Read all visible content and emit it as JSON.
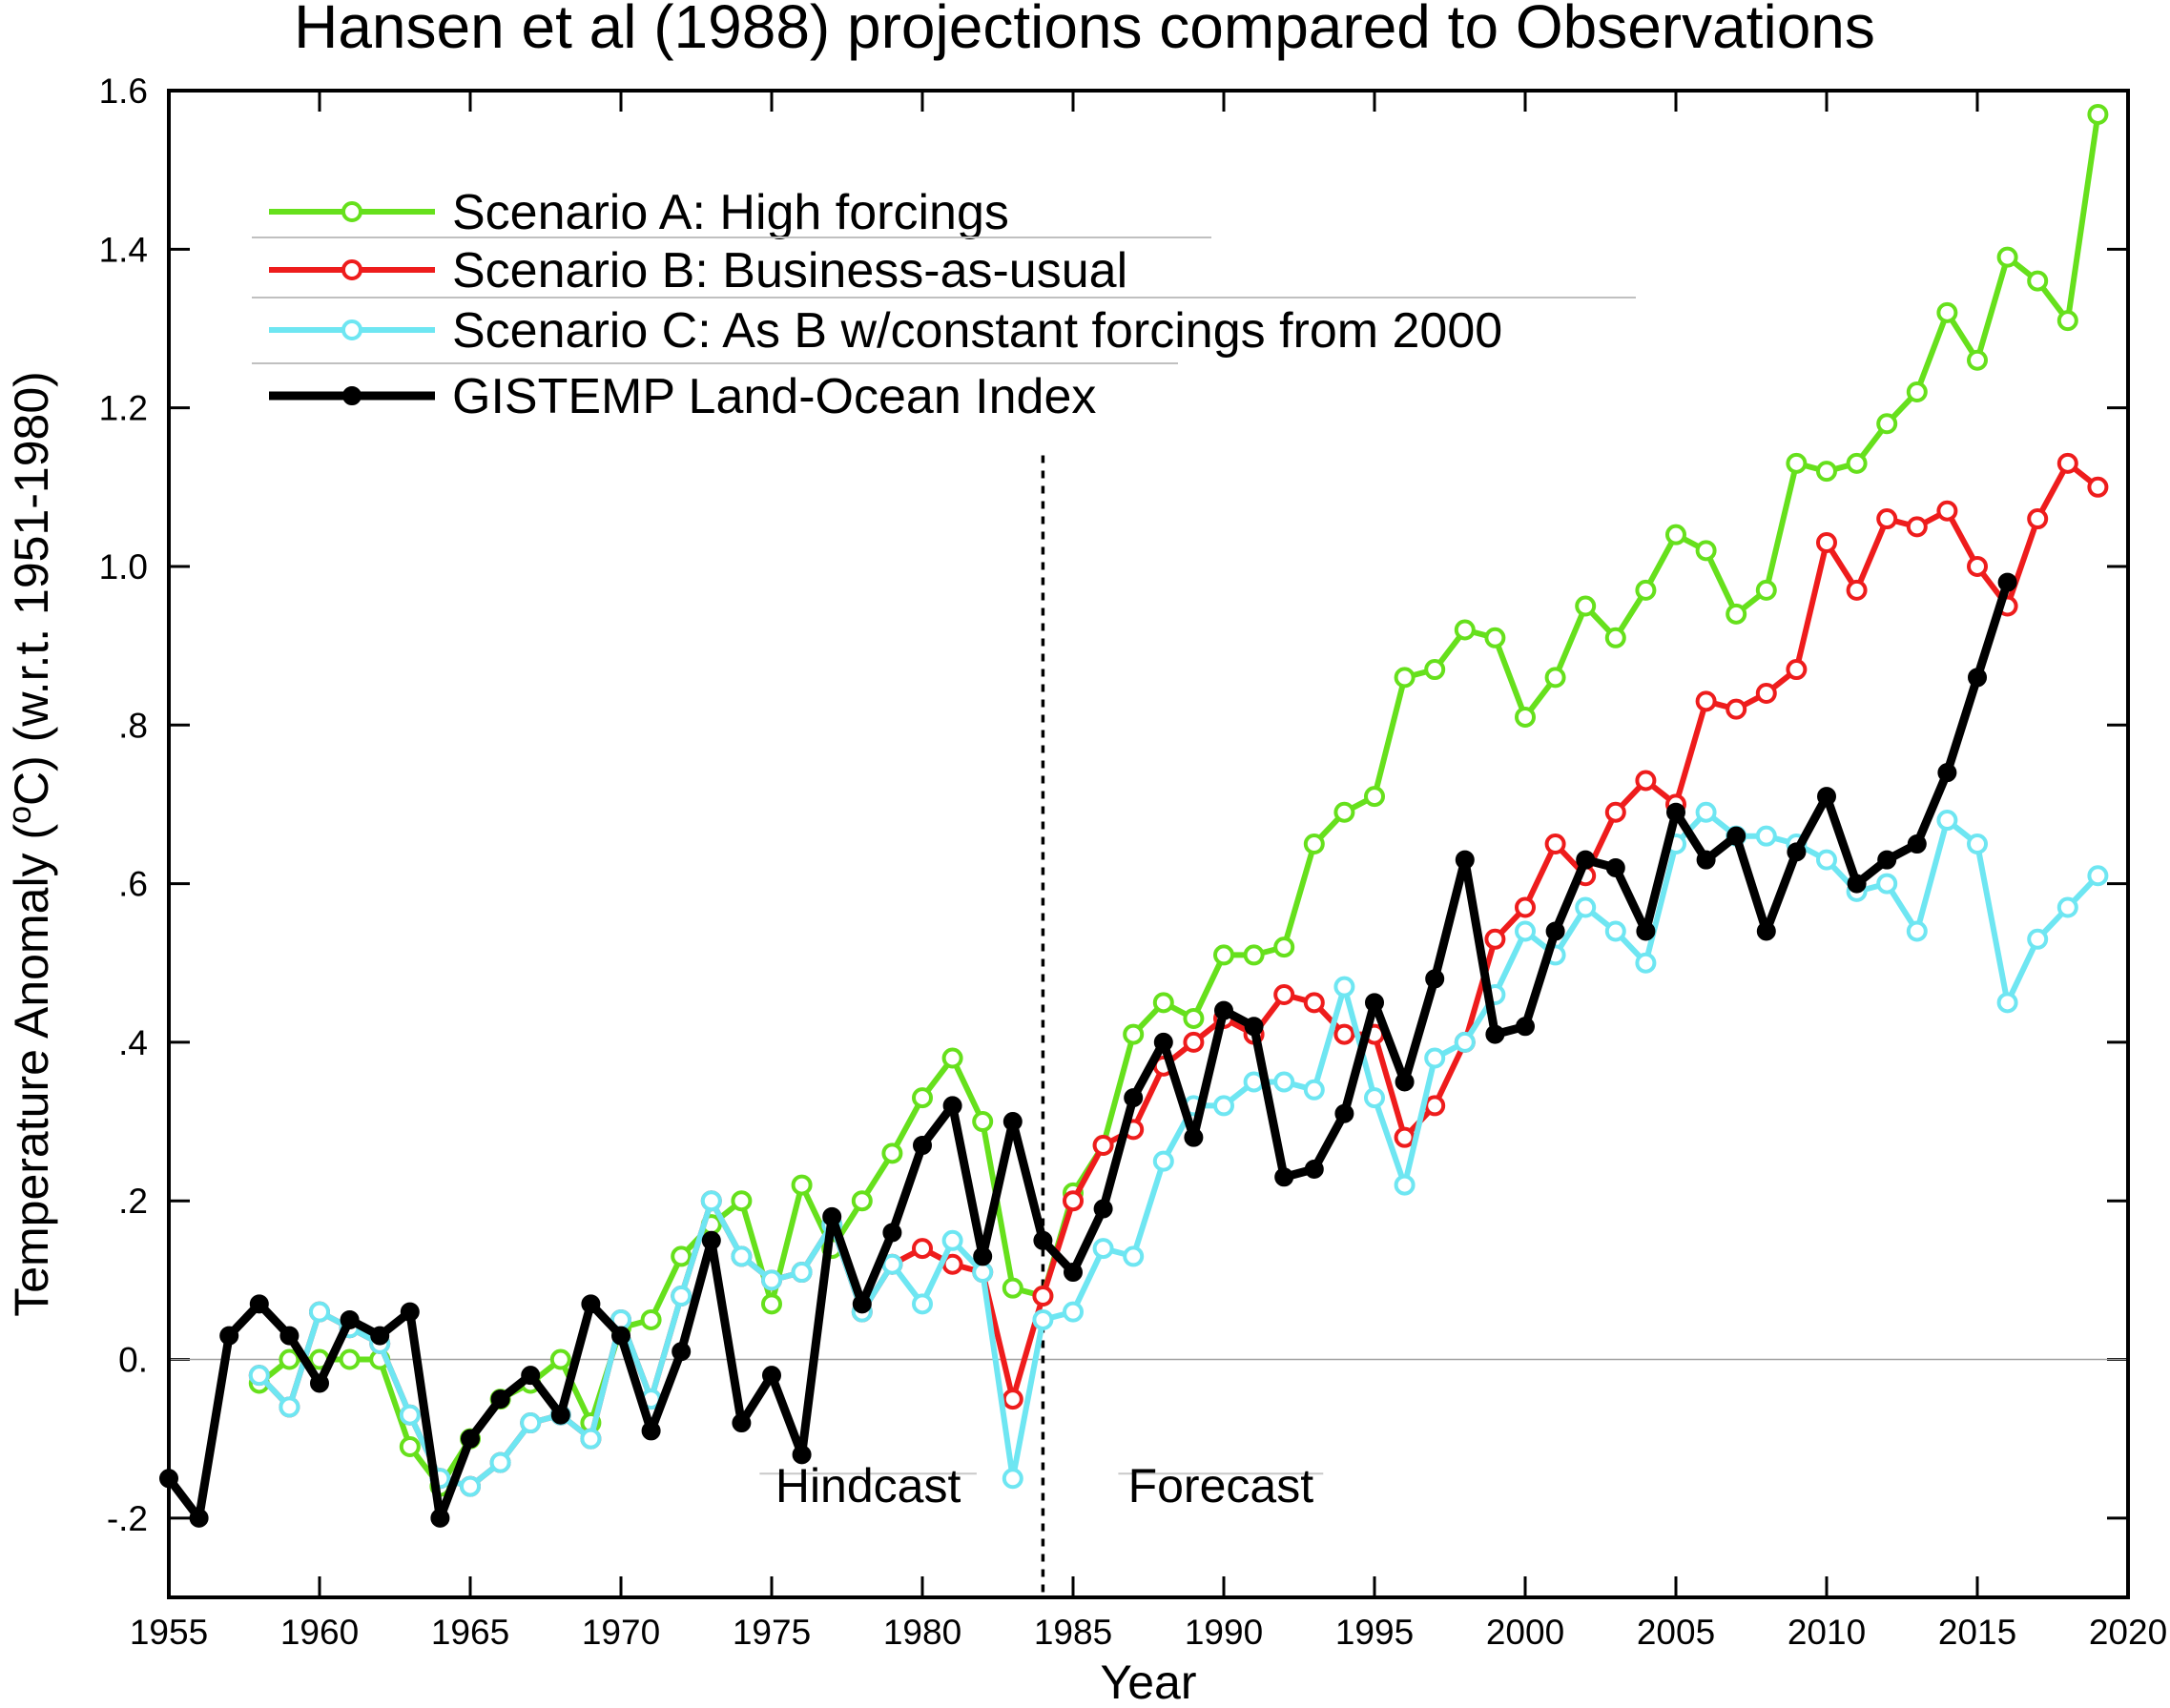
{
  "chart_data": {
    "type": "line",
    "title": "Hansen et al (1988) projections compared to Observations",
    "xlabel": "Year",
    "ylabel": "Temperature Anomaly (oC) (w.r.t. 1951-1980)",
    "xlim": [
      1955,
      2020
    ],
    "ylim": [
      -0.3,
      1.6
    ],
    "x_ticks": [
      1955,
      1960,
      1965,
      1970,
      1975,
      1980,
      1985,
      1990,
      1995,
      2000,
      2005,
      2010,
      2015,
      2020
    ],
    "y_ticks": [
      -0.2,
      0.0,
      0.2,
      0.4,
      0.6,
      0.8,
      1.0,
      1.2,
      1.4,
      1.6
    ],
    "y_tick_labels": [
      "-.2",
      "0.",
      ".2",
      ".4",
      ".6",
      ".8",
      "1.0",
      "1.2",
      "1.4",
      "1.6"
    ],
    "grid": false,
    "legend_position": "top-left",
    "zero_line": true,
    "vertical_marker": {
      "x": 1984,
      "style": "dotted"
    },
    "annotations": [
      {
        "text": "Hindcast",
        "x": 1978.2,
        "y": -0.18
      },
      {
        "text": "Forecast",
        "x": 1989.9,
        "y": -0.18
      }
    ],
    "series": [
      {
        "name": "Scenario A: High forcings",
        "color": "#66e01c",
        "marker": "open-circle",
        "x": [
          1958,
          1959,
          1960,
          1961,
          1962,
          1963,
          1964,
          1965,
          1966,
          1967,
          1968,
          1969,
          1970,
          1971,
          1972,
          1973,
          1974,
          1975,
          1976,
          1977,
          1978,
          1979,
          1980,
          1981,
          1982,
          1983,
          1984,
          1985,
          1986,
          1987,
          1988,
          1989,
          1990,
          1991,
          1992,
          1993,
          1994,
          1995,
          1996,
          1997,
          1998,
          1999,
          2000,
          2001,
          2002,
          2003,
          2004,
          2005,
          2006,
          2007,
          2008,
          2009,
          2010,
          2011,
          2012,
          2013,
          2014,
          2015,
          2016,
          2017,
          2018,
          2019
        ],
        "values": [
          -0.03,
          0.0,
          0.0,
          0.0,
          0.0,
          -0.11,
          -0.16,
          -0.1,
          -0.05,
          -0.03,
          0.0,
          -0.08,
          0.04,
          0.05,
          0.13,
          0.17,
          0.2,
          0.07,
          0.22,
          0.14,
          0.2,
          0.26,
          0.33,
          0.38,
          0.3,
          0.09,
          0.08,
          0.21,
          0.27,
          0.41,
          0.45,
          0.43,
          0.51,
          0.51,
          0.52,
          0.65,
          0.69,
          0.71,
          0.86,
          0.87,
          0.92,
          0.91,
          0.81,
          0.86,
          0.95,
          0.91,
          0.97,
          1.04,
          1.02,
          0.94,
          0.97,
          1.13,
          1.12,
          1.13,
          1.18,
          1.22,
          1.32,
          1.26,
          1.39,
          1.36,
          1.31,
          1.57
        ]
      },
      {
        "name": "Scenario B: Business-as-usual",
        "color": "#ee1c1c",
        "marker": "open-circle",
        "x": [
          1958,
          1959,
          1960,
          1961,
          1962,
          1963,
          1964,
          1965,
          1966,
          1967,
          1968,
          1969,
          1970,
          1971,
          1972,
          1973,
          1974,
          1975,
          1976,
          1977,
          1978,
          1979,
          1980,
          1981,
          1982,
          1983,
          1984,
          1985,
          1986,
          1987,
          1988,
          1989,
          1990,
          1991,
          1992,
          1993,
          1994,
          1995,
          1996,
          1997,
          1998,
          1999,
          2000,
          2001,
          2002,
          2003,
          2004,
          2005,
          2006,
          2007,
          2008,
          2009,
          2010,
          2011,
          2012,
          2013,
          2014,
          2015,
          2016,
          2017,
          2018,
          2019
        ],
        "values": [
          -0.02,
          -0.06,
          0.06,
          0.04,
          0.02,
          -0.07,
          -0.15,
          -0.16,
          -0.13,
          -0.08,
          -0.07,
          -0.1,
          0.05,
          -0.05,
          0.08,
          0.2,
          0.13,
          0.1,
          0.11,
          0.17,
          0.06,
          0.12,
          0.14,
          0.12,
          0.11,
          -0.05,
          0.08,
          0.2,
          0.27,
          0.29,
          0.37,
          0.4,
          0.43,
          0.41,
          0.46,
          0.45,
          0.41,
          0.41,
          0.28,
          0.32,
          0.4,
          0.53,
          0.57,
          0.65,
          0.61,
          0.69,
          0.73,
          0.7,
          0.83,
          0.82,
          0.84,
          0.87,
          1.03,
          0.97,
          1.06,
          1.05,
          1.07,
          1.0,
          0.95,
          1.06,
          1.13,
          1.1
        ]
      },
      {
        "name": "Scenario C: As B w/constant forcings from 2000",
        "color": "#6ee6f2",
        "marker": "open-circle",
        "x": [
          1958,
          1959,
          1960,
          1961,
          1962,
          1963,
          1964,
          1965,
          1966,
          1967,
          1968,
          1969,
          1970,
          1971,
          1972,
          1973,
          1974,
          1975,
          1976,
          1977,
          1978,
          1979,
          1980,
          1981,
          1982,
          1983,
          1984,
          1985,
          1986,
          1987,
          1988,
          1989,
          1990,
          1991,
          1992,
          1993,
          1994,
          1995,
          1996,
          1997,
          1998,
          1999,
          2000,
          2001,
          2002,
          2003,
          2004,
          2005,
          2006,
          2007,
          2008,
          2009,
          2010,
          2011,
          2012,
          2013,
          2014,
          2015,
          2016,
          2017,
          2018,
          2019
        ],
        "values": [
          -0.02,
          -0.06,
          0.06,
          0.04,
          0.02,
          -0.07,
          -0.15,
          -0.16,
          -0.13,
          -0.08,
          -0.07,
          -0.1,
          0.05,
          -0.05,
          0.08,
          0.2,
          0.13,
          0.1,
          0.11,
          0.17,
          0.06,
          0.12,
          0.07,
          0.15,
          0.11,
          -0.15,
          0.05,
          0.06,
          0.14,
          0.13,
          0.25,
          0.32,
          0.32,
          0.35,
          0.35,
          0.34,
          0.47,
          0.33,
          0.22,
          0.38,
          0.4,
          0.46,
          0.54,
          0.51,
          0.57,
          0.54,
          0.5,
          0.65,
          0.69,
          0.66,
          0.66,
          0.65,
          0.63,
          0.59,
          0.6,
          0.54,
          0.68,
          0.65,
          0.45,
          0.53,
          0.57,
          0.61
        ]
      },
      {
        "name": "GISTEMP Land-Ocean Index",
        "color": "#000000",
        "marker": "filled-circle",
        "x": [
          1955,
          1956,
          1957,
          1958,
          1959,
          1960,
          1961,
          1962,
          1963,
          1964,
          1965,
          1966,
          1967,
          1968,
          1969,
          1970,
          1971,
          1972,
          1973,
          1974,
          1975,
          1976,
          1977,
          1978,
          1979,
          1980,
          1981,
          1982,
          1983,
          1984,
          1985,
          1986,
          1987,
          1988,
          1989,
          1990,
          1991,
          1992,
          1993,
          1994,
          1995,
          1996,
          1997,
          1998,
          1999,
          2000,
          2001,
          2002,
          2003,
          2004,
          2005,
          2006,
          2007,
          2008,
          2009,
          2010,
          2011,
          2012,
          2013,
          2014,
          2015,
          2016
        ],
        "values": [
          -0.15,
          -0.2,
          0.03,
          0.07,
          0.03,
          -0.03,
          0.05,
          0.03,
          0.06,
          -0.2,
          -0.1,
          -0.05,
          -0.02,
          -0.07,
          0.07,
          0.03,
          -0.09,
          0.01,
          0.15,
          -0.08,
          -0.02,
          -0.12,
          0.18,
          0.07,
          0.16,
          0.27,
          0.32,
          0.13,
          0.3,
          0.15,
          0.11,
          0.19,
          0.33,
          0.4,
          0.28,
          0.44,
          0.42,
          0.23,
          0.24,
          0.31,
          0.45,
          0.35,
          0.48,
          0.63,
          0.41,
          0.42,
          0.54,
          0.63,
          0.62,
          0.54,
          0.69,
          0.63,
          0.66,
          0.54,
          0.64,
          0.71,
          0.6,
          0.63,
          0.65,
          0.74,
          0.86,
          0.98
        ]
      }
    ]
  }
}
